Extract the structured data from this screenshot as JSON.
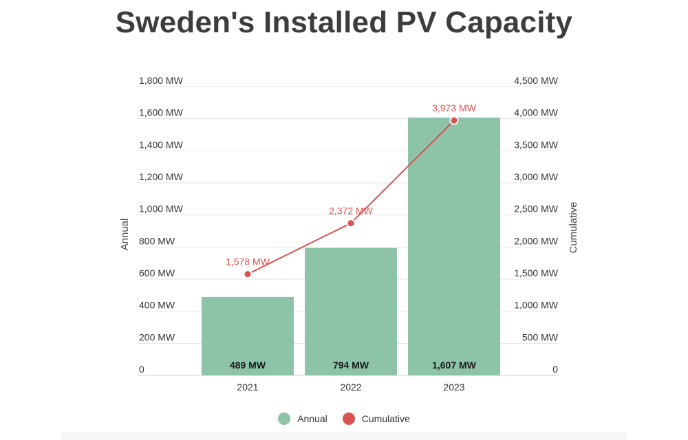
{
  "chart_data": {
    "title": "Sweden's Installed PV Capacity",
    "type": "bar+line",
    "categories": [
      "2021",
      "2022",
      "2023"
    ],
    "series": [
      {
        "name": "Annual",
        "type": "bar",
        "axis": "left",
        "values": [
          489,
          794,
          1607
        ],
        "labels": [
          "489 MW",
          "794 MW",
          "1,607 MW"
        ],
        "color": "#8dc4a7"
      },
      {
        "name": "Cumulative",
        "type": "line",
        "axis": "right",
        "values": [
          1578,
          2372,
          3973
        ],
        "labels": [
          "1,578 MW",
          "2,372 MW",
          "3,973 MW"
        ],
        "color": "#d9534f"
      }
    ],
    "y_left": {
      "label": "Annual",
      "range": [
        0,
        1800
      ],
      "ticks": [
        "0",
        "200 MW",
        "400 MW",
        "600 MW",
        "800 MW",
        "1,000 MW",
        "1,200 MW",
        "1,400 MW",
        "1,600 MW",
        "1,800 MW"
      ]
    },
    "y_right": {
      "label": "Cumulative",
      "range": [
        0,
        4500
      ],
      "ticks": [
        "0",
        "500 MW",
        "1,000 MW",
        "1,500 MW",
        "2,000 MW",
        "2,500 MW",
        "3,000 MW",
        "3,500 MW",
        "4,000 MW",
        "4,500 MW"
      ]
    },
    "grid": true,
    "legend_position": "bottom"
  }
}
